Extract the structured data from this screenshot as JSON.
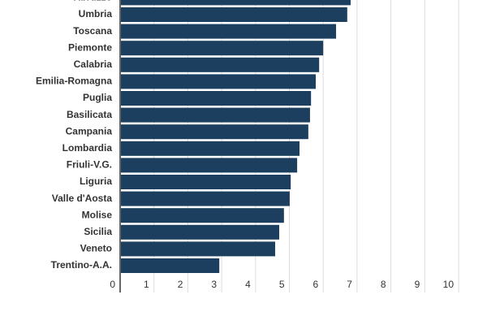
{
  "chart_data": {
    "type": "hbar",
    "categories": [
      "Abruzzo",
      "Umbria",
      "Toscana",
      "Piemonte",
      "Calabria",
      "Emilia-Romagna",
      "Puglia",
      "Basilicata",
      "Campania",
      "Lombardia",
      "Friuli-V.G.",
      "Liguria",
      "Valle d'Aosta",
      "Molise",
      "Sicilia",
      "Veneto",
      "Trentino-A.A."
    ],
    "values": [
      6.81,
      6.71,
      6.38,
      6.0,
      5.88,
      5.78,
      5.64,
      5.61,
      5.56,
      5.3,
      5.23,
      5.04,
      5.01,
      4.84,
      4.7,
      4.58,
      2.93
    ],
    "color": "#1c3f5f",
    "xlim": [
      0,
      10
    ],
    "xticks": [
      0,
      1,
      2,
      3,
      4,
      5,
      6,
      7,
      8,
      9,
      10
    ],
    "grid": true
  }
}
